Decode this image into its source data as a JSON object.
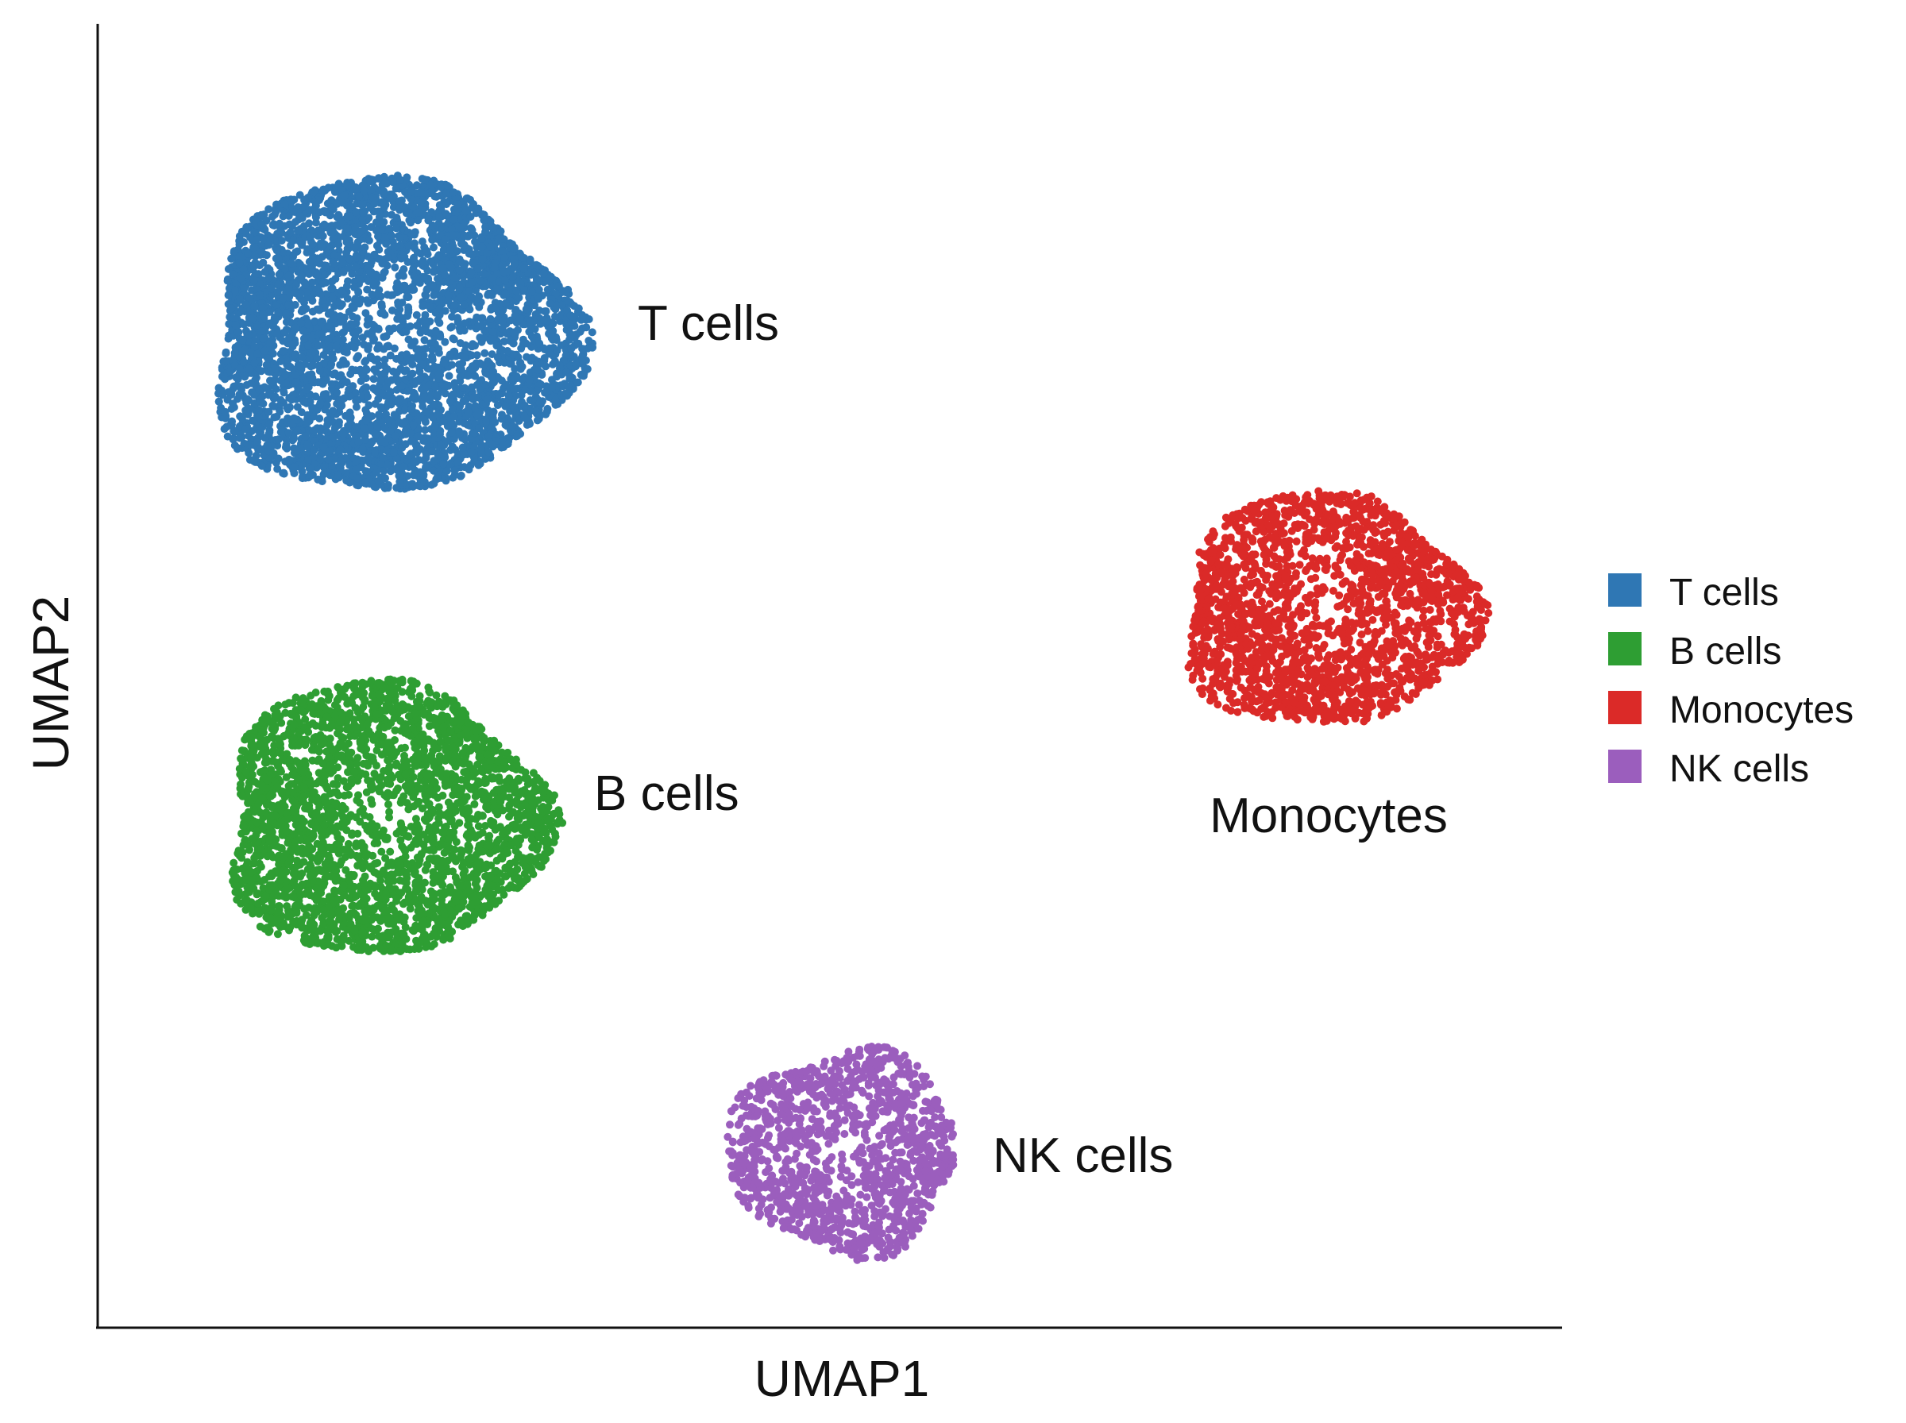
{
  "chart_data": {
    "type": "scatter",
    "title": "",
    "xlabel": "UMAP1",
    "ylabel": "UMAP2",
    "xlim": [
      0,
      10
    ],
    "ylim": [
      0,
      10
    ],
    "grid": false,
    "legend": {
      "placement": "right",
      "entries": [
        "T cells",
        "B cells",
        "Monocytes",
        "NK cells"
      ]
    },
    "series": [
      {
        "name": "T cells",
        "color": "#2f77b4",
        "center": [
          2.0,
          7.6
        ],
        "spread": [
          1.25,
          1.2
        ],
        "n_points": 4200
      },
      {
        "name": "B cells",
        "color": "#2e9e33",
        "center": [
          1.95,
          3.9
        ],
        "spread": [
          1.1,
          1.05
        ],
        "n_points": 2900
      },
      {
        "name": "Monocytes",
        "color": "#db2a28",
        "center": [
          8.4,
          5.5
        ],
        "spread": [
          1.0,
          0.9
        ],
        "n_points": 2000
      },
      {
        "name": "NK cells",
        "color": "#9b5ebd",
        "center": [
          5.1,
          1.35
        ],
        "spread": [
          0.78,
          0.78
        ],
        "n_points": 1250
      }
    ],
    "annotations": [
      {
        "text": "T cells",
        "series": "T cells"
      },
      {
        "text": "B cells",
        "series": "B cells"
      },
      {
        "text": "Monocytes",
        "series": "Monocytes"
      },
      {
        "text": "NK cells",
        "series": "NK cells"
      }
    ]
  }
}
